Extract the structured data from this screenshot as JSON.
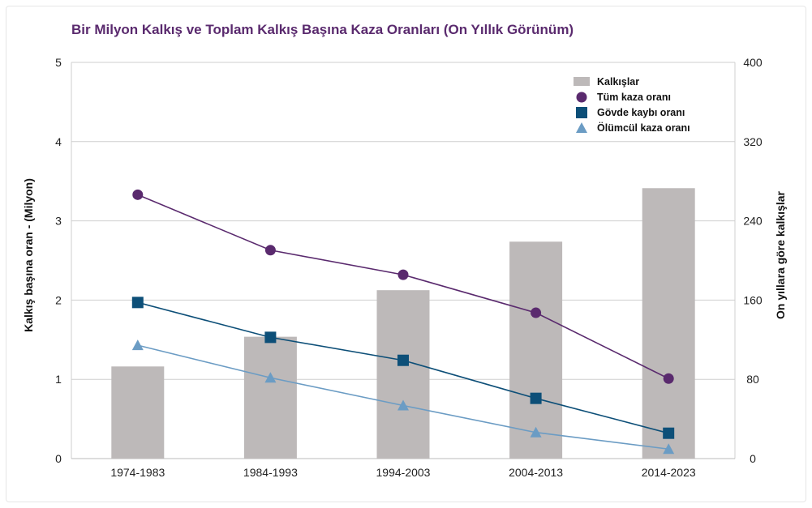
{
  "chart_data": {
    "type": "bar+line",
    "title": "Bir Milyon Kalkış ve Toplam Kalkış Başına Kaza Oranları (On Yıllık Görünüm)",
    "ylabel_left": "Kalkış başına oran - (Milyon)",
    "ylabel_right": "On yıllara göre kalkışlar",
    "categories": [
      "1974-1983",
      "1984-1993",
      "1994-2003",
      "2004-2013",
      "2014-2023"
    ],
    "ylim_left": [
      0,
      5
    ],
    "yticks_left": [
      "0",
      "1",
      "2",
      "3",
      "4",
      "5"
    ],
    "ylim_right": [
      0,
      400
    ],
    "yticks_right": [
      "0",
      "80",
      "160",
      "240",
      "320",
      "400"
    ],
    "bars": {
      "name": "Kalkışlar",
      "axis": "right",
      "color": "#bdb9b9",
      "values": [
        93,
        123,
        170,
        219,
        273
      ]
    },
    "series": [
      {
        "name": "Tüm kaza oranı",
        "marker": "circle",
        "color": "#5a2a6e",
        "values": [
          3.33,
          2.63,
          2.32,
          1.84,
          1.01
        ]
      },
      {
        "name": "Gövde kaybı oranı",
        "marker": "square",
        "color": "#0d4f78",
        "values": [
          1.97,
          1.53,
          1.24,
          0.76,
          0.32
        ]
      },
      {
        "name": "Ölümcül kaza oranı",
        "marker": "triangle",
        "color": "#6b9cc4",
        "values": [
          1.43,
          1.02,
          0.67,
          0.33,
          0.12
        ]
      }
    ],
    "legend_position": "top-right",
    "grid": true
  }
}
